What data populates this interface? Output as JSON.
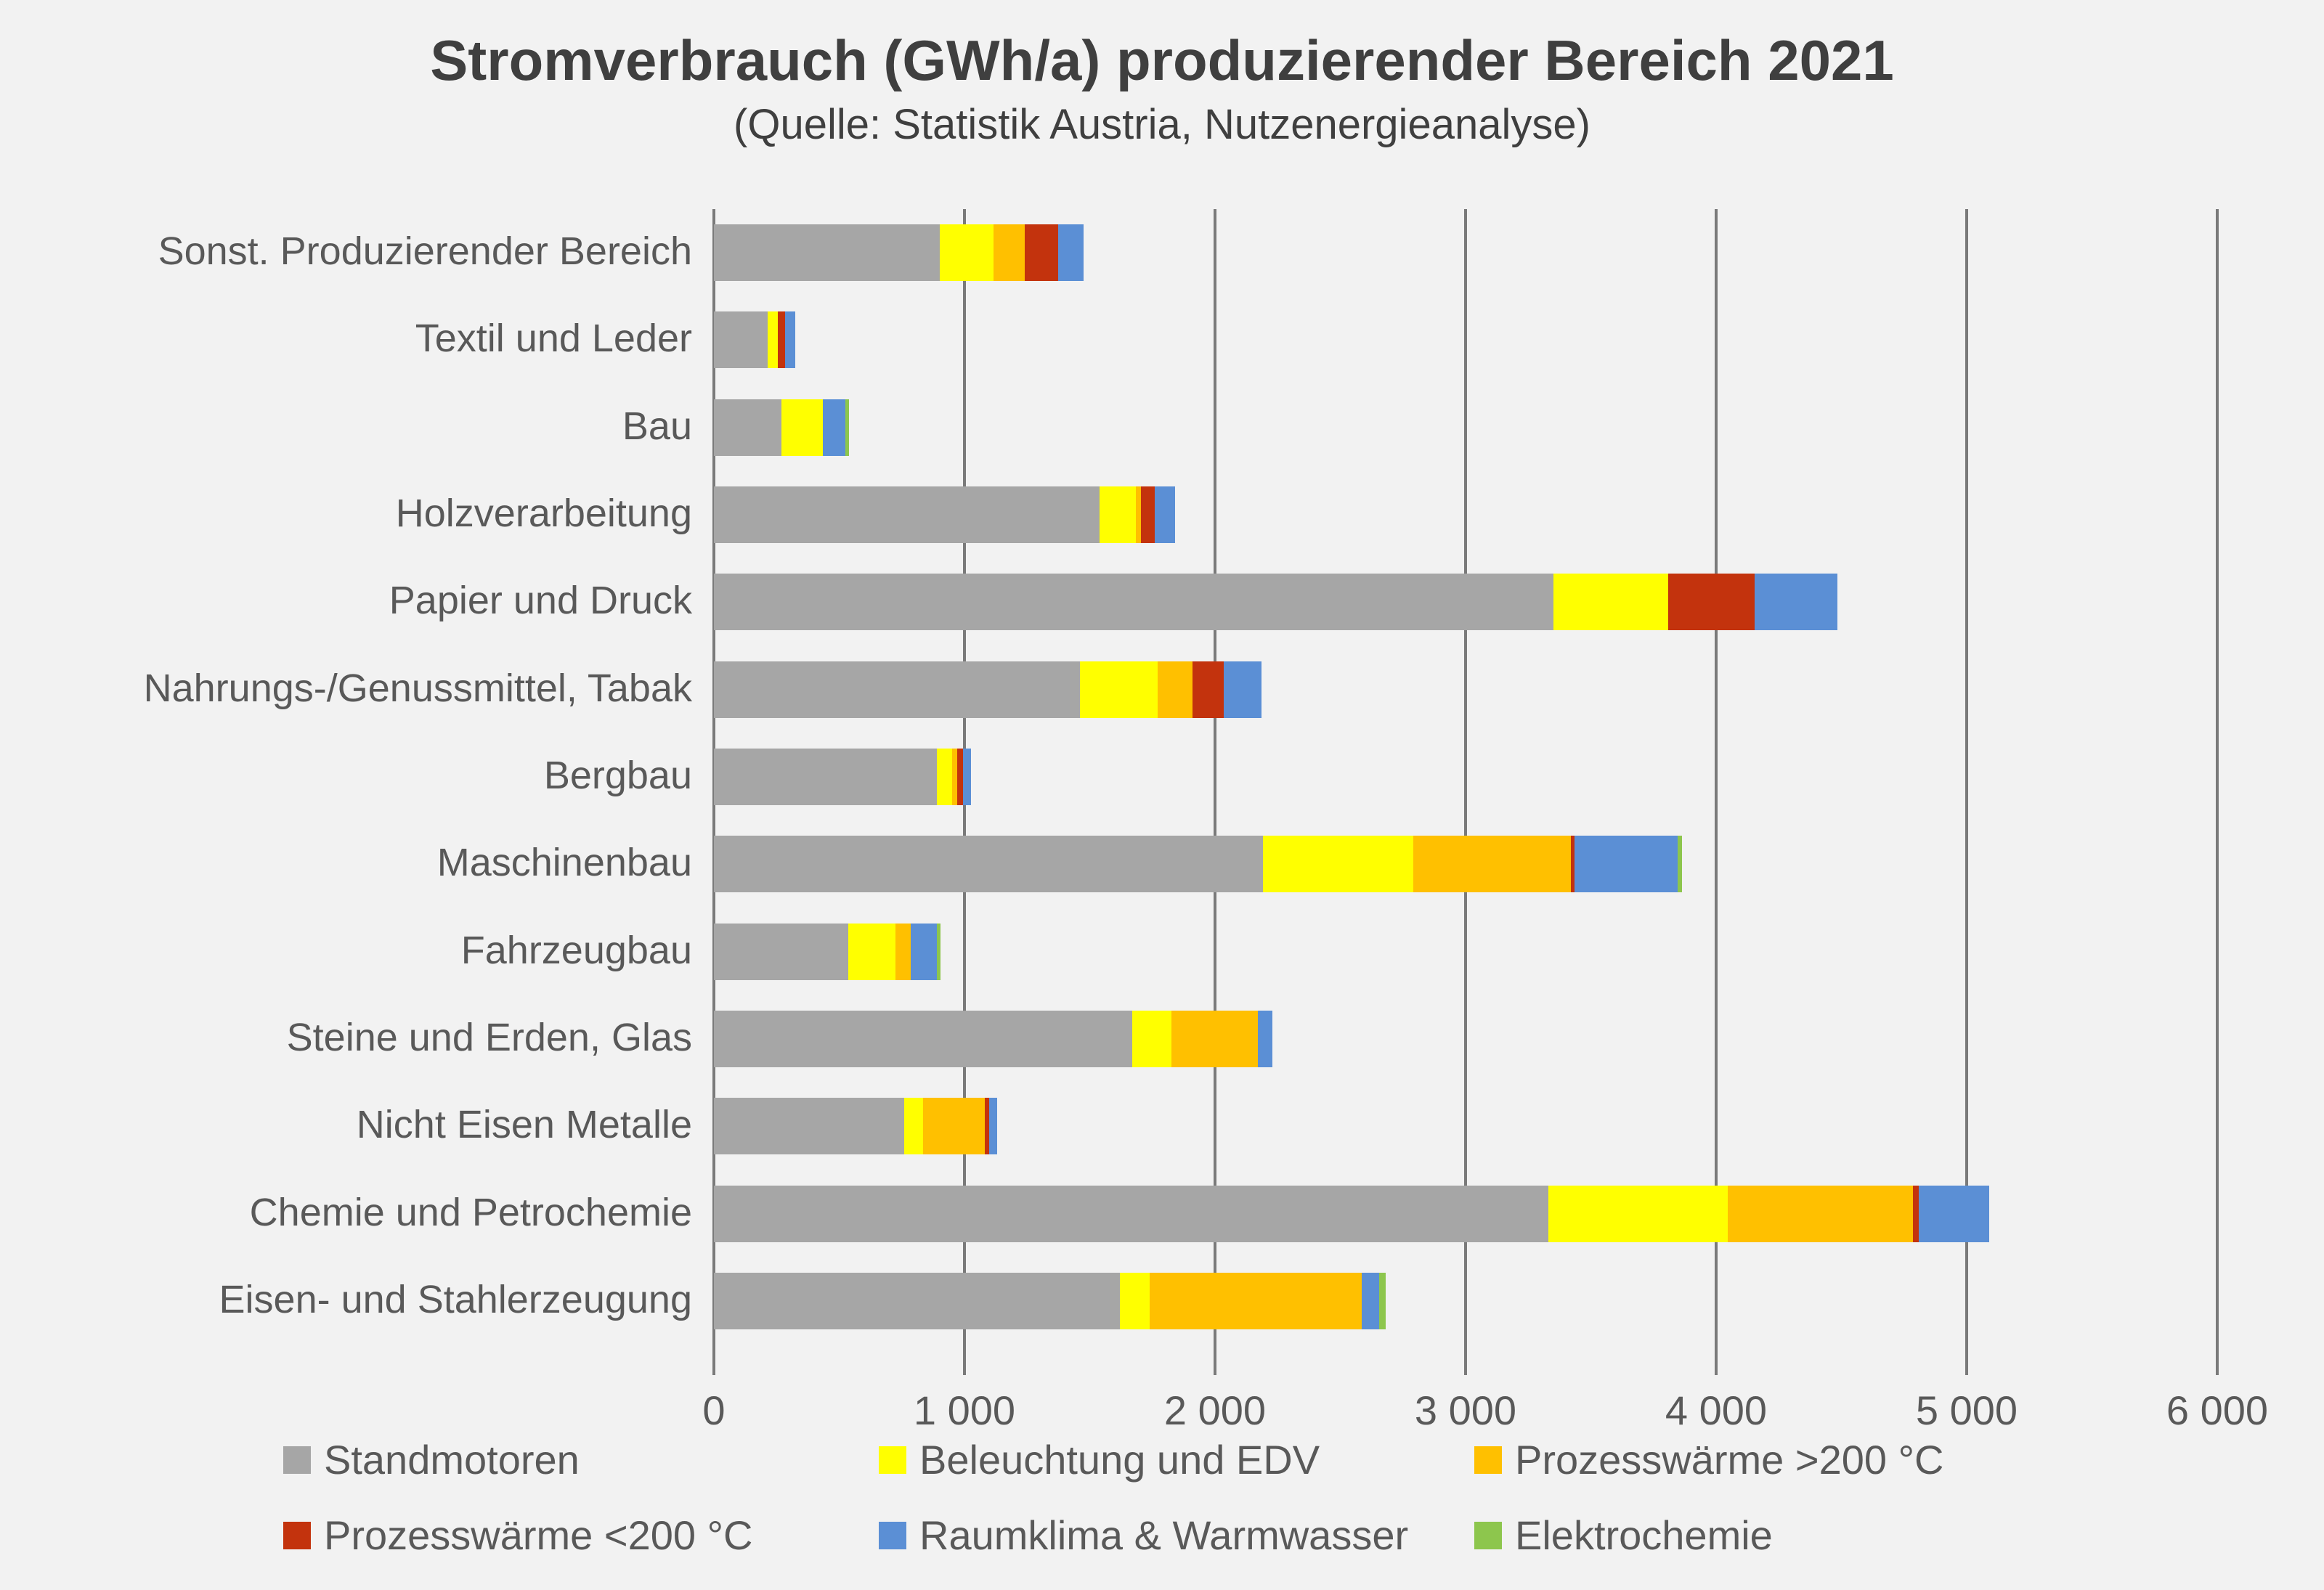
{
  "title": "Stromverbrauch (GWh/a) produzierender Bereich 2021",
  "subtitle": "(Quelle: Statistik Austria, Nutzenergieanalyse)",
  "chart_data": {
    "type": "bar",
    "orientation": "horizontal-stacked",
    "title": "Stromverbrauch (GWh/a) produzierender Bereich 2021",
    "subtitle": "(Quelle: Statistik Austria, Nutzenergieanalyse)",
    "xlabel": "",
    "ylabel": "",
    "xlim": [
      0,
      6000
    ],
    "xticks": [
      {
        "value": 0,
        "label": "0"
      },
      {
        "value": 1000,
        "label": "1 000"
      },
      {
        "value": 2000,
        "label": "2 000"
      },
      {
        "value": 3000,
        "label": "3 000"
      },
      {
        "value": 4000,
        "label": "4 000"
      },
      {
        "value": 5000,
        "label": "5 000"
      },
      {
        "value": 6000,
        "label": "6 000"
      }
    ],
    "grid": true,
    "legend_position": "bottom",
    "categories": [
      "Sonst. Produzierender Bereich",
      "Textil und Leder",
      "Bau",
      "Holzverarbeitung",
      "Papier und Druck",
      "Nahrungs-/Genussmittel, Tabak",
      "Bergbau",
      "Maschinenbau",
      "Fahrzeugbau",
      "Steine und Erden, Glas",
      "Nicht Eisen Metalle",
      "Chemie und Petrochemie",
      "Eisen- und Stahlerzeugung"
    ],
    "series": [
      {
        "name": "Standmotoren",
        "color": "#a6a6a6",
        "values": [
          900,
          215,
          270,
          1540,
          3350,
          1460,
          890,
          2190,
          535,
          1670,
          760,
          3330,
          1620
        ]
      },
      {
        "name": "Beleuchtung und EDV",
        "color": "#ffff00",
        "values": [
          215,
          40,
          165,
          145,
          460,
          310,
          60,
          600,
          190,
          155,
          75,
          715,
          120
        ]
      },
      {
        "name": "Prozesswärme >200 °C",
        "color": "#ffc000",
        "values": [
          125,
          0,
          0,
          20,
          0,
          140,
          20,
          630,
          60,
          345,
          245,
          740,
          845
        ]
      },
      {
        "name": "Prozesswärme <200 °C",
        "color": "#c3330d",
        "values": [
          135,
          30,
          0,
          55,
          345,
          125,
          25,
          15,
          0,
          0,
          20,
          25,
          0
        ]
      },
      {
        "name": "Raumklima & Warmwasser",
        "color": "#5b8fd5",
        "values": [
          100,
          40,
          90,
          80,
          330,
          150,
          30,
          410,
          105,
          60,
          30,
          280,
          70
        ]
      },
      {
        "name": "Elektrochemie",
        "color": "#8dc64d",
        "values": [
          0,
          0,
          15,
          0,
          0,
          0,
          0,
          20,
          15,
          0,
          0,
          0,
          25
        ]
      }
    ]
  },
  "legend": {
    "rows": [
      [
        "Standmotoren",
        "Beleuchtung und EDV",
        "Prozesswärme >200 °C"
      ],
      [
        "Prozesswärme <200 °C",
        "Raumklima & Warmwasser",
        "Elektrochemie"
      ]
    ]
  }
}
